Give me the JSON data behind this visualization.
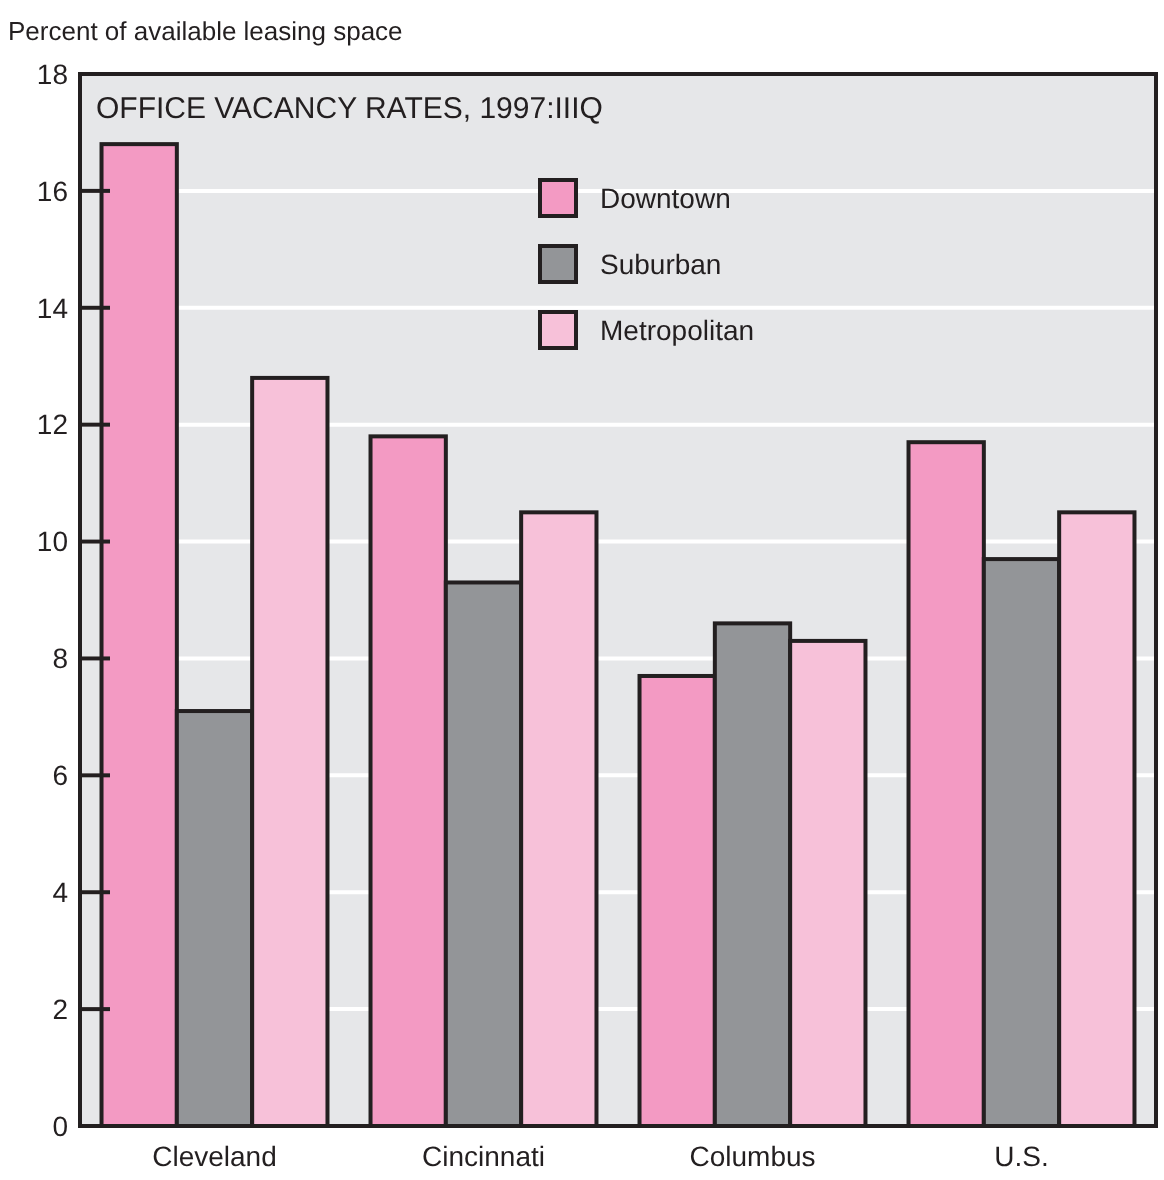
{
  "chart_data": {
    "type": "bar",
    "title": "OFFICE VACANCY RATES, 1997:IIIQ",
    "ylabel": "Percent of available leasing space",
    "categories": [
      "Cleveland",
      "Cincinnati",
      "Columbus",
      "U.S."
    ],
    "series": [
      {
        "name": "Downtown",
        "color": "#f39ac3",
        "values": [
          16.8,
          11.8,
          7.7,
          11.7
        ]
      },
      {
        "name": "Suburban",
        "color": "#939598",
        "values": [
          7.1,
          9.3,
          8.6,
          9.7
        ]
      },
      {
        "name": "Metropolitan",
        "color": "#f7c1d9",
        "values": [
          12.8,
          10.5,
          8.3,
          10.5
        ]
      }
    ],
    "ylim": [
      0,
      18
    ],
    "yticks": [
      0,
      2,
      4,
      6,
      8,
      10,
      12,
      14,
      16,
      18
    ],
    "grid": "y",
    "legend": "top"
  }
}
